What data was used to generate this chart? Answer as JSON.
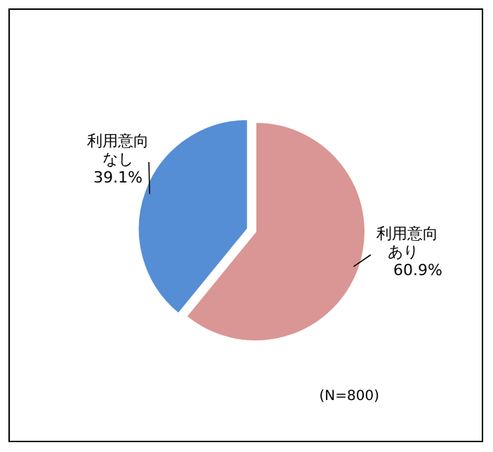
{
  "chart_data": {
    "type": "pie",
    "categories": [
      "利用意向あり",
      "利用意向なし"
    ],
    "values": [
      60.9,
      39.1
    ],
    "colors": [
      "#d99694",
      "#558ed5"
    ],
    "value_labels": [
      "60.9%",
      "39.1%"
    ],
    "annotations": [
      "(N=800)"
    ]
  }
}
